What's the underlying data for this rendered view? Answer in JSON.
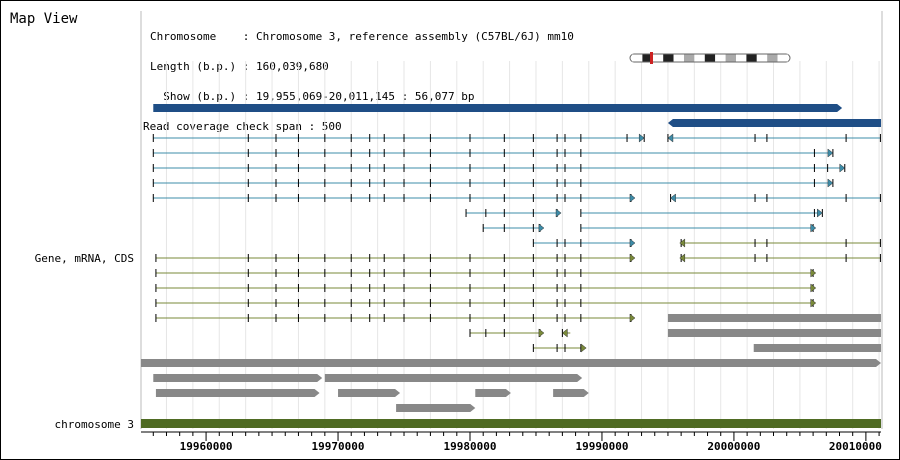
{
  "panel": {
    "title": "Map View"
  },
  "info": {
    "chromosome": "Chromosome    : Chromosome 3, reference assembly (C57BL/6J) mm10",
    "length": "Length (b.p.) : 160,039,680",
    "show": "  Show (b.p.) : 19,955,069-20,011,145 : 56,077 bp",
    "coverage": "Read coverage check span : 500"
  },
  "tracks": {
    "gene_label": "Gene, mRNA, CDS",
    "chromosome_label": "chromosome 3"
  },
  "ruler": {
    "range": [
      19955069,
      20011145
    ],
    "ticks": [
      {
        "value": 19960000,
        "label": "19960000"
      },
      {
        "value": 19970000,
        "label": "19970000"
      },
      {
        "value": 19980000,
        "label": "19980000"
      },
      {
        "value": 19990000,
        "label": "19990000"
      },
      {
        "value": 20000000,
        "label": "20000000"
      },
      {
        "value": 20010000,
        "label": "20010000"
      }
    ]
  },
  "colors": {
    "gene": "#1f4e86",
    "mrna": "#3d8ca8",
    "cds": "#7a8a3a",
    "other": "#888888",
    "chromosome": "#4f6b23",
    "ideogram_marker": "#cc2222",
    "grid": "#dddddd"
  },
  "features": {
    "genes": [
      {
        "start": 19956000,
        "end": 20008200,
        "dir": "+"
      },
      {
        "start": 19995000,
        "end": 20011145,
        "dir": "-"
      }
    ],
    "mrna": [
      {
        "start": 19956000,
        "end": 19993200,
        "dir": "+",
        "exons": [
          19956000,
          19963200,
          19965300,
          19967000,
          19969000,
          19971000,
          19972400,
          19973500,
          19975000,
          19977000,
          19980000,
          19982600,
          19984800,
          19986600,
          19987200,
          19988400,
          19991900,
          19993200
        ]
      },
      {
        "start": 19995000,
        "end": 20011145,
        "dir": "-",
        "exons": [
          19995000,
          20001600,
          20002500,
          20008500,
          20011100
        ]
      },
      {
        "start": 19956000,
        "end": 20007500,
        "dir": "+",
        "exons": [
          19956000,
          19963200,
          19965300,
          19967000,
          19969000,
          19971000,
          19972400,
          19973500,
          19975000,
          19977000,
          19980000,
          19982600,
          19984800,
          19986600,
          19987200,
          19988400,
          20006100,
          20007500
        ]
      },
      {
        "start": 19956000,
        "end": 20008400,
        "dir": "+",
        "exons": [
          19956000,
          19963200,
          19965300,
          19967000,
          19969000,
          19971000,
          19972400,
          19973500,
          19975000,
          19977000,
          19980000,
          19982600,
          19984800,
          19986600,
          19987200,
          19988400,
          20006100,
          20007100,
          20008400
        ]
      },
      {
        "start": 19956000,
        "end": 20007500,
        "dir": "+",
        "exons": [
          19956000,
          19963200,
          19965300,
          19967000,
          19969000,
          19971000,
          19972400,
          19973500,
          19975000,
          19977000,
          19980000,
          19982600,
          19984800,
          19986600,
          19987200,
          19988400,
          20006100,
          20007500
        ]
      },
      {
        "start": 19956000,
        "end": 19992500,
        "dir": "+",
        "exons": [
          19956000,
          19963200,
          19965300,
          19967000,
          19969000,
          19971000,
          19972400,
          19973500,
          19975000,
          19977000,
          19980000,
          19982600,
          19984800,
          19986600,
          19987200,
          19988400,
          19992200
        ]
      },
      {
        "start": 19995200,
        "end": 20011145,
        "dir": "-",
        "exons": [
          19995200,
          20001600,
          20002500,
          20008500,
          20011100
        ]
      },
      {
        "start": 19979700,
        "end": 19986900,
        "dir": "+",
        "exons": [
          19979700,
          19981200,
          19982600,
          19984800,
          19986600
        ]
      },
      {
        "start": 19988400,
        "end": 20006700,
        "dir": "+",
        "exons": [
          19988400,
          20006100,
          20006700
        ]
      },
      {
        "start": 19981000,
        "end": 19985600,
        "dir": "+",
        "exons": [
          19981000,
          19982600,
          19984800,
          19985300
        ]
      },
      {
        "start": 19988400,
        "end": 20006200,
        "dir": "+",
        "exons": [
          19988400,
          20006000
        ]
      },
      {
        "start": 19984800,
        "end": 19992500,
        "dir": "+",
        "exons": [
          19984800,
          19986600,
          19987200,
          19988400,
          19992200
        ]
      }
    ],
    "cds": [
      {
        "start": 19995900,
        "end": 20011145,
        "dir": "-",
        "exons": [
          19996000,
          20001600,
          20002500,
          20008500,
          20011100
        ]
      },
      {
        "start": 19956200,
        "end": 19992500,
        "dir": "+",
        "exons": [
          19956200,
          19963200,
          19965300,
          19967000,
          19969000,
          19971000,
          19972400,
          19973500,
          19975000,
          19977000,
          19980000,
          19982600,
          19984800,
          19986600,
          19987200,
          19988400,
          19992200
        ]
      },
      {
        "start": 19995900,
        "end": 20011145,
        "dir": "-",
        "exons": [
          19996000,
          20001600,
          20002500,
          20008500,
          20011100
        ]
      },
      {
        "start": 19956200,
        "end": 20006200,
        "dir": "+",
        "exons": [
          19956200,
          19963200,
          19965300,
          19967000,
          19969000,
          19971000,
          19972400,
          19973500,
          19975000,
          19977000,
          19980000,
          19982600,
          19984800,
          19986600,
          19987200,
          19988400,
          20006000
        ]
      },
      {
        "start": 19956200,
        "end": 20006200,
        "dir": "+",
        "exons": [
          19956200,
          19963200,
          19965300,
          19967000,
          19969000,
          19971000,
          19972400,
          19973500,
          19975000,
          19977000,
          19980000,
          19982600,
          19984800,
          19986600,
          19987200,
          19988400,
          20006000
        ]
      },
      {
        "start": 19956200,
        "end": 20006200,
        "dir": "+",
        "exons": [
          19956200,
          19963200,
          19965300,
          19967000,
          19969000,
          19971000,
          19972400,
          19973500,
          19975000,
          19977000,
          19980000,
          19982600,
          19984800,
          19986600,
          19987200,
          19988400,
          20006000
        ]
      },
      {
        "start": 19956200,
        "end": 19992500,
        "dir": "+",
        "exons": [
          19956200,
          19963200,
          19965300,
          19967000,
          19969000,
          19971000,
          19972400,
          19973500,
          19975000,
          19977000,
          19980000,
          19982600,
          19984800,
          19986600,
          19987200,
          19988400,
          19992200
        ]
      },
      {
        "start": 19980000,
        "end": 19985600,
        "dir": "+",
        "exons": [
          19980000,
          19981200,
          19982600,
          19985300
        ]
      },
      {
        "start": 19987000,
        "end": 19987600,
        "dir": "-",
        "exons": [
          19987000
        ]
      },
      {
        "start": 19984800,
        "end": 19988800,
        "dir": "+",
        "exons": [
          19984800,
          19986600,
          19987200,
          19988400
        ]
      }
    ],
    "other_boxes": [
      {
        "start": 19995000,
        "end": 20011145,
        "dir": "none"
      },
      {
        "start": 19995000,
        "end": 20011145,
        "dir": "none"
      },
      {
        "start": 20001500,
        "end": 20011145,
        "dir": "none"
      },
      {
        "start": 19955069,
        "end": 20011145,
        "dir": "+"
      },
      {
        "start": 19956000,
        "end": 19968800,
        "dir": "+"
      },
      {
        "start": 19969000,
        "end": 19988500,
        "dir": "+"
      },
      {
        "start": 19956200,
        "end": 19968600,
        "dir": "+"
      },
      {
        "start": 19970000,
        "end": 19974700,
        "dir": "+"
      },
      {
        "start": 19980400,
        "end": 19983100,
        "dir": "+"
      },
      {
        "start": 19986300,
        "end": 19989000,
        "dir": "+"
      },
      {
        "start": 19974400,
        "end": 19980400,
        "dir": "+"
      }
    ],
    "chromosome": {
      "start": 19955069,
      "end": 20011145
    }
  },
  "ideogram": {
    "bands": [
      "w",
      "b",
      "w",
      "b",
      "w",
      "g",
      "w",
      "b",
      "w",
      "g",
      "w",
      "b",
      "w",
      "g",
      "w"
    ],
    "marker_position": 0.125
  }
}
